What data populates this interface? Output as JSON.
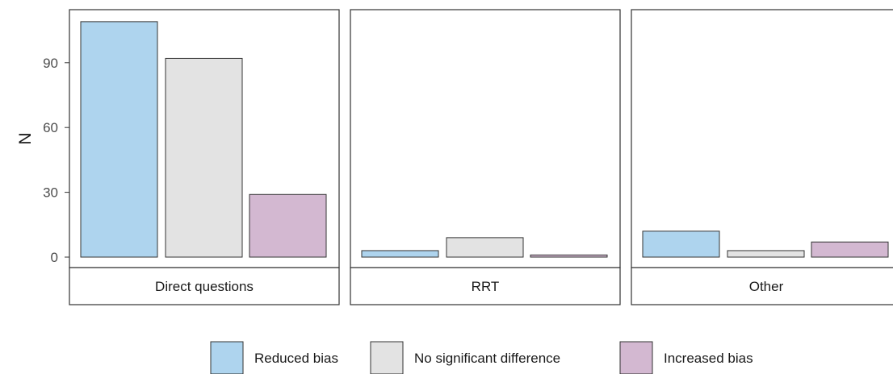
{
  "chart_data": {
    "type": "bar",
    "layout": "faceted",
    "ylabel": "N",
    "xlabel": "",
    "ylim": [
      0,
      110
    ],
    "yticks": [
      0,
      30,
      60,
      90
    ],
    "grid": false,
    "legend_position": "bottom",
    "categories": [
      "Reduced bias",
      "No significant difference",
      "Increased bias"
    ],
    "colors": {
      "Reduced bias": "#aed4ee",
      "No significant difference": "#e3e3e3",
      "Increased bias": "#d3b8d1"
    },
    "panels": [
      {
        "label": "Direct questions",
        "values": [
          109,
          92,
          29
        ]
      },
      {
        "label": "RRT",
        "values": [
          3,
          9,
          1
        ]
      },
      {
        "label": "Other",
        "values": [
          12,
          3,
          7
        ]
      }
    ],
    "legend": [
      "Reduced bias",
      "No significant difference",
      "Increased bias"
    ]
  }
}
